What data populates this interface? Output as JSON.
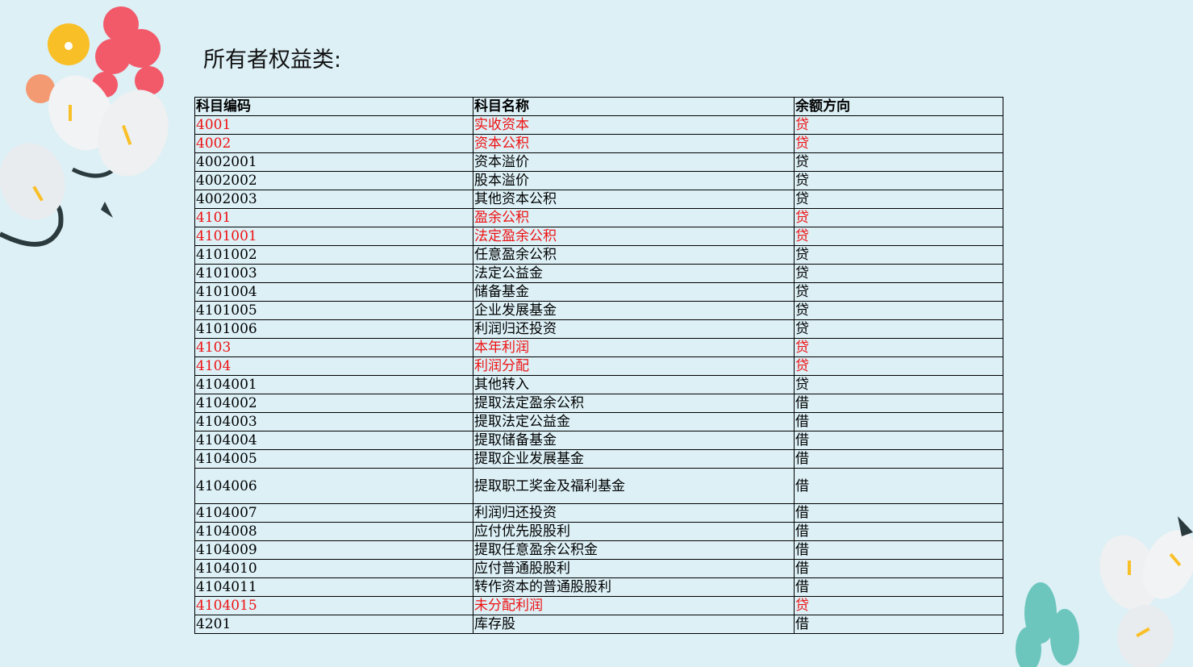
{
  "title": "所有者权益类:",
  "colors": {
    "background": "#dcf0f6",
    "highlight": "#ee1111"
  },
  "table": {
    "headers": [
      "科目编码",
      "科目名称",
      "余额方向"
    ],
    "rows": [
      {
        "code": "4001",
        "name": "实收资本",
        "dir": "贷",
        "highlight": true
      },
      {
        "code": "4002",
        "name": "资本公积",
        "dir": "贷",
        "highlight": true
      },
      {
        "code": "4002001",
        "name": "资本溢价",
        "dir": "贷",
        "highlight": false
      },
      {
        "code": "4002002",
        "name": "股本溢价",
        "dir": "贷",
        "highlight": false
      },
      {
        "code": "4002003",
        "name": "其他资本公积",
        "dir": "贷",
        "highlight": false
      },
      {
        "code": "4101",
        "name": "盈余公积",
        "dir": "贷",
        "highlight": true
      },
      {
        "code": "4101001",
        "name": "法定盈余公积",
        "dir": "贷",
        "highlight": true
      },
      {
        "code": "4101002",
        "name": "任意盈余公积",
        "dir": "贷",
        "highlight": false
      },
      {
        "code": "4101003",
        "name": "法定公益金",
        "dir": "贷",
        "highlight": false
      },
      {
        "code": "4101004",
        "name": "储备基金",
        "dir": "贷",
        "highlight": false
      },
      {
        "code": "4101005",
        "name": "企业发展基金",
        "dir": "贷",
        "highlight": false
      },
      {
        "code": "4101006",
        "name": "利润归还投资",
        "dir": "贷",
        "highlight": false
      },
      {
        "code": "4103",
        "name": "本年利润",
        "dir": "贷",
        "highlight": true
      },
      {
        "code": "4104",
        "name": "利润分配",
        "dir": "贷",
        "highlight": true
      },
      {
        "code": "4104001",
        "name": "其他转入",
        "dir": "贷",
        "highlight": false
      },
      {
        "code": "4104002",
        "name": "提取法定盈余公积",
        "dir": "借",
        "highlight": false
      },
      {
        "code": "4104003",
        "name": "提取法定公益金",
        "dir": "借",
        "highlight": false
      },
      {
        "code": "4104004",
        "name": "提取储备基金",
        "dir": "借",
        "highlight": false
      },
      {
        "code": "4104005",
        "name": "提取企业发展基金",
        "dir": "借",
        "highlight": false
      },
      {
        "code": "4104006",
        "name": "提取职工奖金及福利基金",
        "dir": "借",
        "highlight": false
      },
      {
        "code": "4104007",
        "name": "利润归还投资",
        "dir": "借",
        "highlight": false
      },
      {
        "code": "4104008",
        "name": "应付优先股股利",
        "dir": "借",
        "highlight": false
      },
      {
        "code": "4104009",
        "name": "提取任意盈余公积金",
        "dir": "借",
        "highlight": false
      },
      {
        "code": "4104010",
        "name": "应付普通股股利",
        "dir": "借",
        "highlight": false
      },
      {
        "code": "4104011",
        "name": "转作资本的普通股股利",
        "dir": "借",
        "highlight": false
      },
      {
        "code": "4104015",
        "name": "未分配利润",
        "dir": "贷",
        "highlight": true
      },
      {
        "code": "4201",
        "name": "库存股",
        "dir": "借",
        "highlight": false
      }
    ]
  }
}
